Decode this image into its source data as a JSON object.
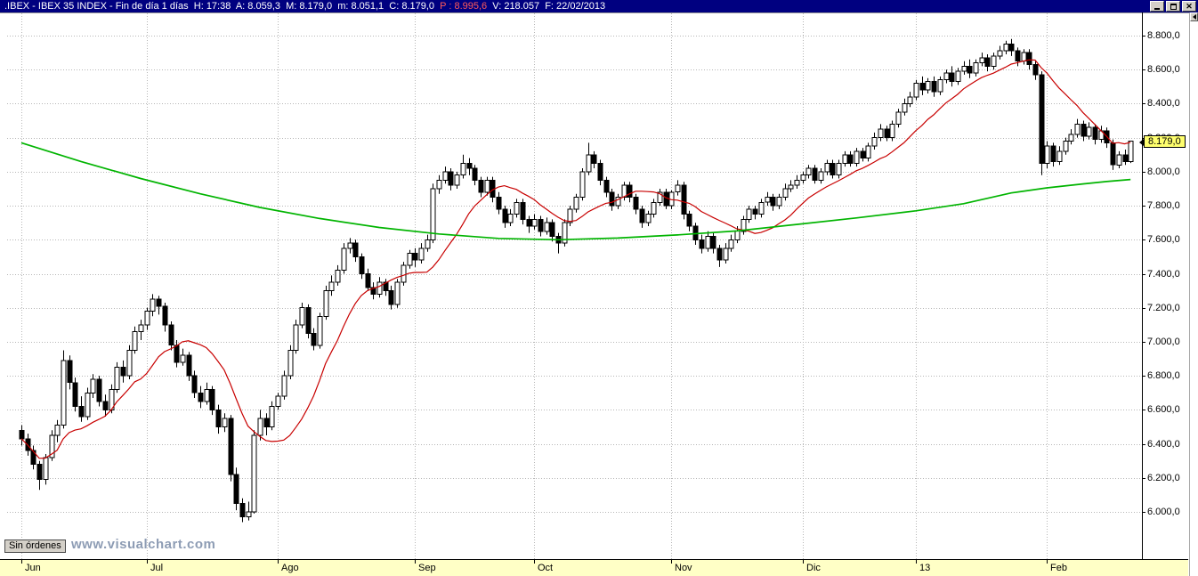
{
  "window": {
    "title_main": ".IBEX - IBEX 35 INDEX - Fin de día 1 días  H: 17:38  A: 8.059,3  M: 8.179,0  m: 8.051,1  C: 8.179,0  ",
    "title_p": "P : 8.995,6",
    "title_tail": "  V: 218.057  F: 22/02/2013"
  },
  "status": {
    "orders": "Sin órdenes",
    "watermark": "www.visualchart.com"
  },
  "chart_data": {
    "type": "candlestick",
    "symbol": ".IBEX",
    "title": "IBEX 35 INDEX",
    "timeframe": "Fin de día 1 días",
    "session": {
      "time": "17:38",
      "open": "8.059,3",
      "high": "8.179,0",
      "low": "8.051,1",
      "close": "8.179,0",
      "p": "8.995,6",
      "volume": "218.057",
      "date": "22/02/2013"
    },
    "y_axis": {
      "min": 6000,
      "max": 8800,
      "step": 200,
      "tick_labels": [
        "8.800,0",
        "8.600,0",
        "8.400,0",
        "8.200,0",
        "8.000,0",
        "7.800,0",
        "7.600,0",
        "7.400,0",
        "7.200,0",
        "7.000,0",
        "6.800,0",
        "6.600,0",
        "6.400,0",
        "6.200,0",
        "6.000,0"
      ]
    },
    "x_axis": {
      "tick_labels": [
        "Jun",
        "Jul",
        "Ago",
        "Sep",
        "Oct",
        "Nov",
        "Dic",
        "13",
        "Feb"
      ],
      "tick_days": [
        0,
        21,
        43,
        66,
        86,
        109,
        131,
        150,
        172
      ]
    },
    "last_price": {
      "label": "8.179,0",
      "value": 8179
    },
    "grid": true,
    "candles": [
      [
        6480,
        6510,
        6390,
        6430
      ],
      [
        6430,
        6460,
        6330,
        6360
      ],
      [
        6360,
        6390,
        6250,
        6280
      ],
      [
        6280,
        6300,
        6130,
        6190
      ],
      [
        6190,
        6340,
        6160,
        6320
      ],
      [
        6320,
        6480,
        6300,
        6450
      ],
      [
        6450,
        6540,
        6410,
        6510
      ],
      [
        6510,
        6950,
        6490,
        6890
      ],
      [
        6890,
        6920,
        6720,
        6760
      ],
      [
        6760,
        6790,
        6590,
        6620
      ],
      [
        6620,
        6680,
        6530,
        6560
      ],
      [
        6560,
        6730,
        6540,
        6700
      ],
      [
        6700,
        6810,
        6670,
        6780
      ],
      [
        6780,
        6800,
        6620,
        6650
      ],
      [
        6650,
        6690,
        6560,
        6600
      ],
      [
        6600,
        6750,
        6580,
        6720
      ],
      [
        6720,
        6880,
        6700,
        6850
      ],
      [
        6850,
        6890,
        6760,
        6800
      ],
      [
        6800,
        6980,
        6780,
        6950
      ],
      [
        6950,
        7090,
        6930,
        7060
      ],
      [
        7060,
        7130,
        7010,
        7100
      ],
      [
        7100,
        7200,
        7070,
        7180
      ],
      [
        7180,
        7280,
        7150,
        7250
      ],
      [
        7250,
        7270,
        7160,
        7210
      ],
      [
        7210,
        7230,
        7060,
        7100
      ],
      [
        7100,
        7120,
        6950,
        6980
      ],
      [
        6980,
        7010,
        6850,
        6880
      ],
      [
        6880,
        6960,
        6860,
        6920
      ],
      [
        6920,
        6940,
        6770,
        6800
      ],
      [
        6800,
        6830,
        6670,
        6700
      ],
      [
        6700,
        6740,
        6610,
        6650
      ],
      [
        6650,
        6760,
        6630,
        6720
      ],
      [
        6720,
        6740,
        6570,
        6600
      ],
      [
        6600,
        6630,
        6460,
        6500
      ],
      [
        6500,
        6580,
        6470,
        6550
      ],
      [
        6550,
        6570,
        6180,
        6220
      ],
      [
        6220,
        6260,
        6010,
        6050
      ],
      [
        6050,
        6080,
        5940,
        5970
      ],
      [
        5970,
        6060,
        5950,
        6000
      ],
      [
        6000,
        6480,
        5990,
        6450
      ],
      [
        6450,
        6600,
        6420,
        6550
      ],
      [
        6550,
        6580,
        6450,
        6500
      ],
      [
        6500,
        6650,
        6480,
        6620
      ],
      [
        6620,
        6700,
        6600,
        6680
      ],
      [
        6680,
        6830,
        6660,
        6800
      ],
      [
        6800,
        6980,
        6780,
        6950
      ],
      [
        6950,
        7130,
        6930,
        7100
      ],
      [
        7100,
        7230,
        7080,
        7200
      ],
      [
        7200,
        7220,
        7020,
        7050
      ],
      [
        7050,
        7080,
        6950,
        6980
      ],
      [
        6980,
        7170,
        6960,
        7150
      ],
      [
        7150,
        7330,
        7130,
        7300
      ],
      [
        7300,
        7390,
        7270,
        7350
      ],
      [
        7350,
        7450,
        7330,
        7420
      ],
      [
        7420,
        7580,
        7400,
        7550
      ],
      [
        7550,
        7610,
        7520,
        7580
      ],
      [
        7580,
        7600,
        7470,
        7500
      ],
      [
        7500,
        7520,
        7370,
        7400
      ],
      [
        7400,
        7430,
        7300,
        7320
      ],
      [
        7320,
        7350,
        7250,
        7280
      ],
      [
        7280,
        7380,
        7260,
        7350
      ],
      [
        7350,
        7370,
        7270,
        7300
      ],
      [
        7300,
        7330,
        7190,
        7220
      ],
      [
        7220,
        7370,
        7200,
        7350
      ],
      [
        7350,
        7470,
        7330,
        7450
      ],
      [
        7450,
        7540,
        7430,
        7520
      ],
      [
        7520,
        7550,
        7440,
        7480
      ],
      [
        7480,
        7580,
        7460,
        7550
      ],
      [
        7550,
        7630,
        7530,
        7600
      ],
      [
        7600,
        7930,
        7580,
        7900
      ],
      [
        7900,
        7980,
        7870,
        7950
      ],
      [
        7950,
        8030,
        7930,
        8000
      ],
      [
        8000,
        8020,
        7890,
        7920
      ],
      [
        7920,
        8000,
        7900,
        7980
      ],
      [
        7980,
        8100,
        7960,
        8050
      ],
      [
        8050,
        8080,
        7980,
        8020
      ],
      [
        8020,
        8040,
        7920,
        7950
      ],
      [
        7950,
        7970,
        7850,
        7880
      ],
      [
        7880,
        7970,
        7860,
        7950
      ],
      [
        7950,
        7970,
        7820,
        7850
      ],
      [
        7850,
        7880,
        7750,
        7780
      ],
      [
        7780,
        7800,
        7670,
        7700
      ],
      [
        7700,
        7780,
        7680,
        7750
      ],
      [
        7750,
        7840,
        7730,
        7820
      ],
      [
        7820,
        7840,
        7690,
        7720
      ],
      [
        7720,
        7740,
        7640,
        7680
      ],
      [
        7680,
        7750,
        7660,
        7720
      ],
      [
        7720,
        7740,
        7620,
        7650
      ],
      [
        7650,
        7730,
        7630,
        7700
      ],
      [
        7700,
        7720,
        7590,
        7620
      ],
      [
        7620,
        7640,
        7520,
        7580
      ],
      [
        7580,
        7720,
        7560,
        7700
      ],
      [
        7700,
        7800,
        7680,
        7780
      ],
      [
        7780,
        7870,
        7760,
        7850
      ],
      [
        7850,
        8020,
        7830,
        8000
      ],
      [
        8000,
        8170,
        7980,
        8100
      ],
      [
        8100,
        8120,
        8020,
        8050
      ],
      [
        8050,
        8070,
        7920,
        7950
      ],
      [
        7950,
        7970,
        7850,
        7880
      ],
      [
        7880,
        7900,
        7770,
        7800
      ],
      [
        7800,
        7870,
        7780,
        7850
      ],
      [
        7850,
        7940,
        7830,
        7920
      ],
      [
        7920,
        7940,
        7820,
        7850
      ],
      [
        7850,
        7870,
        7750,
        7780
      ],
      [
        7780,
        7800,
        7670,
        7700
      ],
      [
        7700,
        7770,
        7680,
        7750
      ],
      [
        7750,
        7840,
        7730,
        7820
      ],
      [
        7820,
        7900,
        7800,
        7880
      ],
      [
        7880,
        7900,
        7780,
        7800
      ],
      [
        7800,
        7890,
        7780,
        7880
      ],
      [
        7880,
        7950,
        7860,
        7920
      ],
      [
        7920,
        7940,
        7720,
        7750
      ],
      [
        7750,
        7770,
        7650,
        7680
      ],
      [
        7680,
        7700,
        7570,
        7600
      ],
      [
        7600,
        7630,
        7520,
        7550
      ],
      [
        7550,
        7650,
        7530,
        7620
      ],
      [
        7620,
        7640,
        7520,
        7550
      ],
      [
        7550,
        7570,
        7440,
        7480
      ],
      [
        7480,
        7580,
        7460,
        7550
      ],
      [
        7550,
        7630,
        7530,
        7600
      ],
      [
        7600,
        7680,
        7580,
        7650
      ],
      [
        7650,
        7740,
        7630,
        7720
      ],
      [
        7720,
        7800,
        7700,
        7780
      ],
      [
        7780,
        7800,
        7720,
        7750
      ],
      [
        7750,
        7840,
        7730,
        7820
      ],
      [
        7820,
        7880,
        7800,
        7850
      ],
      [
        7850,
        7870,
        7770,
        7800
      ],
      [
        7800,
        7870,
        7780,
        7850
      ],
      [
        7850,
        7930,
        7830,
        7900
      ],
      [
        7900,
        7950,
        7880,
        7920
      ],
      [
        7920,
        7980,
        7900,
        7950
      ],
      [
        7950,
        8000,
        7930,
        7980
      ],
      [
        7980,
        8040,
        7960,
        8020
      ],
      [
        8020,
        8040,
        7930,
        7950
      ],
      [
        7950,
        8020,
        7930,
        8000
      ],
      [
        8000,
        8070,
        7980,
        8050
      ],
      [
        8050,
        8070,
        7960,
        7980
      ],
      [
        7980,
        8070,
        7960,
        8050
      ],
      [
        8050,
        8120,
        8030,
        8100
      ],
      [
        8100,
        8120,
        8030,
        8050
      ],
      [
        8050,
        8140,
        8030,
        8120
      ],
      [
        8120,
        8140,
        8060,
        8080
      ],
      [
        8080,
        8170,
        8060,
        8150
      ],
      [
        8150,
        8230,
        8130,
        8200
      ],
      [
        8200,
        8280,
        8180,
        8250
      ],
      [
        8250,
        8270,
        8180,
        8200
      ],
      [
        8200,
        8300,
        8180,
        8280
      ],
      [
        8280,
        8370,
        8260,
        8350
      ],
      [
        8350,
        8430,
        8330,
        8400
      ],
      [
        8400,
        8470,
        8380,
        8440
      ],
      [
        8440,
        8540,
        8420,
        8520
      ],
      [
        8520,
        8560,
        8450,
        8480
      ],
      [
        8480,
        8550,
        8460,
        8530
      ],
      [
        8530,
        8560,
        8440,
        8470
      ],
      [
        8470,
        8560,
        8450,
        8540
      ],
      [
        8540,
        8600,
        8520,
        8580
      ],
      [
        8580,
        8620,
        8500,
        8530
      ],
      [
        8530,
        8610,
        8510,
        8590
      ],
      [
        8590,
        8650,
        8570,
        8620
      ],
      [
        8620,
        8660,
        8550,
        8580
      ],
      [
        8580,
        8660,
        8560,
        8640
      ],
      [
        8640,
        8700,
        8620,
        8670
      ],
      [
        8670,
        8690,
        8590,
        8620
      ],
      [
        8620,
        8700,
        8600,
        8680
      ],
      [
        8680,
        8740,
        8660,
        8710
      ],
      [
        8710,
        8770,
        8690,
        8750
      ],
      [
        8750,
        8780,
        8680,
        8710
      ],
      [
        8710,
        8730,
        8620,
        8650
      ],
      [
        8650,
        8720,
        8630,
        8700
      ],
      [
        8700,
        8720,
        8600,
        8630
      ],
      [
        8630,
        8650,
        8540,
        8570
      ],
      [
        8570,
        8590,
        7980,
        8050
      ],
      [
        8050,
        8180,
        8020,
        8150
      ],
      [
        8150,
        8170,
        8030,
        8060
      ],
      [
        8060,
        8150,
        8040,
        8120
      ],
      [
        8120,
        8200,
        8100,
        8180
      ],
      [
        8180,
        8250,
        8160,
        8220
      ],
      [
        8220,
        8310,
        8200,
        8280
      ],
      [
        8280,
        8300,
        8180,
        8210
      ],
      [
        8210,
        8290,
        8190,
        8260
      ],
      [
        8260,
        8280,
        8160,
        8190
      ],
      [
        8190,
        8270,
        8170,
        8240
      ],
      [
        8240,
        8260,
        8140,
        8170
      ],
      [
        8170,
        8190,
        8010,
        8040
      ],
      [
        8040,
        8120,
        8020,
        8100
      ],
      [
        8100,
        8130,
        8040,
        8060
      ],
      [
        8059,
        8179,
        8051,
        8179
      ]
    ],
    "indicators": [
      {
        "name": "moving-average-fast",
        "type": "sma",
        "period": 13,
        "color": "#c80000"
      },
      {
        "name": "moving-average-200",
        "type": "keypoints",
        "color": "#00b400",
        "points": [
          [
            0,
            8170
          ],
          [
            10,
            8060
          ],
          [
            20,
            7960
          ],
          [
            30,
            7870
          ],
          [
            40,
            7790
          ],
          [
            50,
            7725
          ],
          [
            60,
            7672
          ],
          [
            70,
            7634
          ],
          [
            80,
            7608
          ],
          [
            90,
            7600
          ],
          [
            100,
            7610
          ],
          [
            110,
            7628
          ],
          [
            120,
            7652
          ],
          [
            130,
            7690
          ],
          [
            140,
            7728
          ],
          [
            150,
            7770
          ],
          [
            158,
            7812
          ],
          [
            166,
            7875
          ],
          [
            172,
            7905
          ],
          [
            178,
            7928
          ],
          [
            182,
            7942
          ],
          [
            186,
            7954
          ]
        ]
      }
    ]
  }
}
